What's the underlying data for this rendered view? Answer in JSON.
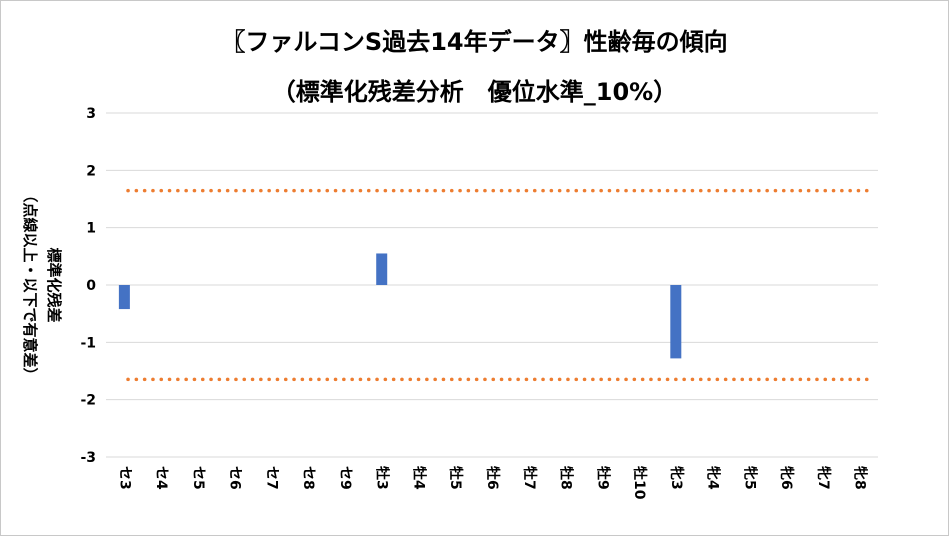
{
  "chart_data": {
    "type": "bar",
    "title": "〖ファルコンS過去14年データ〗性齢毎の傾向",
    "subtitle": "（標準化残差分析　優位水準_10%）",
    "ylabel_line1": "標準化残差",
    "ylabel_line2": "（点線以上・以下で有意差）",
    "xlabel": "",
    "ylim": [
      -3,
      3
    ],
    "yticks": [
      3,
      2,
      1,
      0,
      -1,
      -2,
      -3
    ],
    "grid": true,
    "categories": [
      "セ3",
      "セ4",
      "セ5",
      "セ6",
      "セ7",
      "セ8",
      "セ9",
      "牡3",
      "牡4",
      "牡5",
      "牡6",
      "牡7",
      "牡8",
      "牡9",
      "牡10",
      "牝3",
      "牝4",
      "牝5",
      "牝6",
      "牝7",
      "牝8"
    ],
    "values": [
      -0.42,
      0,
      0,
      0,
      0,
      0,
      0,
      0.55,
      0,
      0,
      0,
      0,
      0,
      0,
      0,
      -1.28,
      0,
      0,
      0,
      0,
      0
    ],
    "threshold_lines": [
      1.645,
      -1.645
    ],
    "colors": {
      "bar": "#4472c4",
      "threshold": "#ed7d31",
      "grid": "#d9d9d9"
    }
  }
}
